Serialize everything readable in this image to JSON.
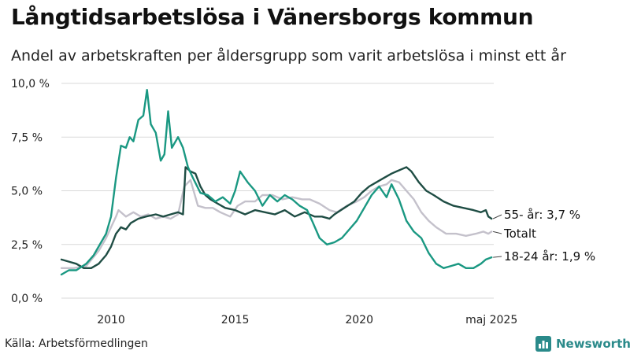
{
  "title": "Långtidsarbetslösa i Vänersborgs kommun",
  "subtitle": "Andel av arbetskraften per åldersgrupp som varit arbetslösa i minst ett år",
  "source": "Källa: Arbetsförmedlingen",
  "brand": "Newsworthy",
  "colors": {
    "age55": "#1f4d44",
    "total": "#c4c1cb",
    "age18_24": "#1a9882",
    "grid": "#d9d9d9",
    "brand": "#2a8a8a"
  },
  "chart_data": {
    "type": "line",
    "title": "Långtidsarbetslösa i Vänersborgs kommun",
    "subtitle": "Andel av arbetskraften per åldersgrupp som varit arbetslösa i minst ett år",
    "xlim": [
      2008.0,
      2025.42
    ],
    "ylim": [
      0,
      10
    ],
    "y_ticks": [
      "0,0 %",
      "2,5 %",
      "5,0 %",
      "7,5 %",
      "10,0 %"
    ],
    "y_tick_values": [
      0,
      2.5,
      5,
      7.5,
      10
    ],
    "x_ticks": [
      "2010",
      "2015",
      "2020",
      "maj 2025"
    ],
    "x_tick_values": [
      2010,
      2015,
      2020,
      2025.33
    ],
    "grid": "horizontal",
    "series": [
      {
        "name": "Totalt",
        "end_label": "Totalt",
        "color_key": "total",
        "x": [
          2008.0,
          2008.5,
          2009.0,
          2009.5,
          2009.8,
          2010.0,
          2010.2,
          2010.3,
          2010.6,
          2010.9,
          2011.2,
          2011.5,
          2011.8,
          2012.1,
          2012.4,
          2012.7,
          2012.95,
          2013.2,
          2013.5,
          2013.8,
          2014.1,
          2014.4,
          2014.8,
          2015.1,
          2015.4,
          2015.8,
          2016.1,
          2016.5,
          2016.9,
          2017.3,
          2017.7,
          2018.0,
          2018.4,
          2018.8,
          2019.1,
          2019.5,
          2019.9,
          2020.2,
          2020.5,
          2020.8,
          2021.1,
          2021.3,
          2021.6,
          2021.9,
          2022.2,
          2022.5,
          2022.8,
          2023.1,
          2023.5,
          2023.9,
          2024.3,
          2024.7,
          2025.0,
          2025.2,
          2025.33
        ],
        "y": [
          1.4,
          1.4,
          1.5,
          2.2,
          2.8,
          3.3,
          3.8,
          4.1,
          3.8,
          4.0,
          3.8,
          3.9,
          3.7,
          3.8,
          3.7,
          3.9,
          5.2,
          5.5,
          4.3,
          4.2,
          4.2,
          4.0,
          3.8,
          4.3,
          4.5,
          4.5,
          4.8,
          4.8,
          4.6,
          4.7,
          4.6,
          4.6,
          4.4,
          4.1,
          4.0,
          4.3,
          4.5,
          4.7,
          5.0,
          5.2,
          5.3,
          5.5,
          5.4,
          5.0,
          4.6,
          4.0,
          3.6,
          3.3,
          3.0,
          3.0,
          2.9,
          3.0,
          3.1,
          3.0,
          3.1
        ]
      },
      {
        "name": "55- år",
        "end_label": "55- år: 3,7 %",
        "color_key": "age55",
        "x": [
          2008.0,
          2008.3,
          2008.6,
          2008.9,
          2009.2,
          2009.5,
          2009.8,
          2010.0,
          2010.2,
          2010.4,
          2010.6,
          2010.8,
          2011.1,
          2011.4,
          2011.8,
          2012.1,
          2012.4,
          2012.7,
          2012.9,
          2013.0,
          2013.2,
          2013.4,
          2013.6,
          2013.8,
          2014.0,
          2014.3,
          2014.6,
          2015.0,
          2015.4,
          2015.8,
          2016.2,
          2016.6,
          2017.0,
          2017.4,
          2017.8,
          2018.2,
          2018.5,
          2018.8,
          2019.0,
          2019.4,
          2019.8,
          2020.1,
          2020.4,
          2020.7,
          2021.0,
          2021.3,
          2021.5,
          2021.7,
          2021.9,
          2022.1,
          2022.4,
          2022.7,
          2023.0,
          2023.4,
          2023.8,
          2024.2,
          2024.6,
          2024.9,
          2025.1,
          2025.2,
          2025.33
        ],
        "y": [
          1.8,
          1.7,
          1.6,
          1.4,
          1.4,
          1.6,
          2.0,
          2.4,
          3.0,
          3.3,
          3.2,
          3.5,
          3.7,
          3.8,
          3.9,
          3.8,
          3.9,
          4.0,
          3.9,
          6.1,
          5.9,
          5.8,
          5.2,
          4.8,
          4.6,
          4.4,
          4.2,
          4.1,
          3.9,
          4.1,
          4.0,
          3.9,
          4.1,
          3.8,
          4.0,
          3.8,
          3.8,
          3.7,
          3.9,
          4.2,
          4.5,
          4.9,
          5.2,
          5.4,
          5.6,
          5.8,
          5.9,
          6.0,
          6.1,
          5.9,
          5.4,
          5.0,
          4.8,
          4.5,
          4.3,
          4.2,
          4.1,
          4.0,
          4.1,
          3.8,
          3.7
        ]
      },
      {
        "name": "18-24 år",
        "end_label": "18-24 år: 1,9 %",
        "color_key": "age18_24",
        "x": [
          2008.0,
          2008.3,
          2008.6,
          2009.0,
          2009.3,
          2009.6,
          2009.8,
          2010.0,
          2010.2,
          2010.4,
          2010.6,
          2010.75,
          2010.9,
          2011.1,
          2011.3,
          2011.45,
          2011.6,
          2011.8,
          2012.0,
          2012.15,
          2012.3,
          2012.45,
          2012.7,
          2012.9,
          2013.1,
          2013.3,
          2013.6,
          2013.9,
          2014.2,
          2014.5,
          2014.8,
          2015.0,
          2015.2,
          2015.5,
          2015.8,
          2016.1,
          2016.4,
          2016.7,
          2017.0,
          2017.3,
          2017.6,
          2017.9,
          2018.1,
          2018.4,
          2018.7,
          2019.0,
          2019.3,
          2019.6,
          2019.9,
          2020.2,
          2020.5,
          2020.8,
          2021.1,
          2021.3,
          2021.6,
          2021.9,
          2022.2,
          2022.5,
          2022.8,
          2023.1,
          2023.4,
          2023.7,
          2024.0,
          2024.3,
          2024.6,
          2024.9,
          2025.1,
          2025.33
        ],
        "y": [
          1.1,
          1.3,
          1.3,
          1.6,
          2.0,
          2.6,
          3.0,
          3.8,
          5.6,
          7.1,
          7.0,
          7.5,
          7.3,
          8.3,
          8.5,
          9.7,
          8.1,
          7.7,
          6.4,
          6.7,
          8.7,
          7.0,
          7.5,
          7.0,
          6.1,
          5.6,
          4.9,
          4.8,
          4.5,
          4.7,
          4.4,
          5.0,
          5.9,
          5.4,
          5.0,
          4.3,
          4.8,
          4.5,
          4.8,
          4.6,
          4.3,
          4.1,
          3.6,
          2.8,
          2.5,
          2.6,
          2.8,
          3.2,
          3.6,
          4.2,
          4.8,
          5.2,
          4.7,
          5.3,
          4.6,
          3.6,
          3.1,
          2.8,
          2.1,
          1.6,
          1.4,
          1.5,
          1.6,
          1.4,
          1.4,
          1.6,
          1.8,
          1.9
        ]
      }
    ]
  }
}
